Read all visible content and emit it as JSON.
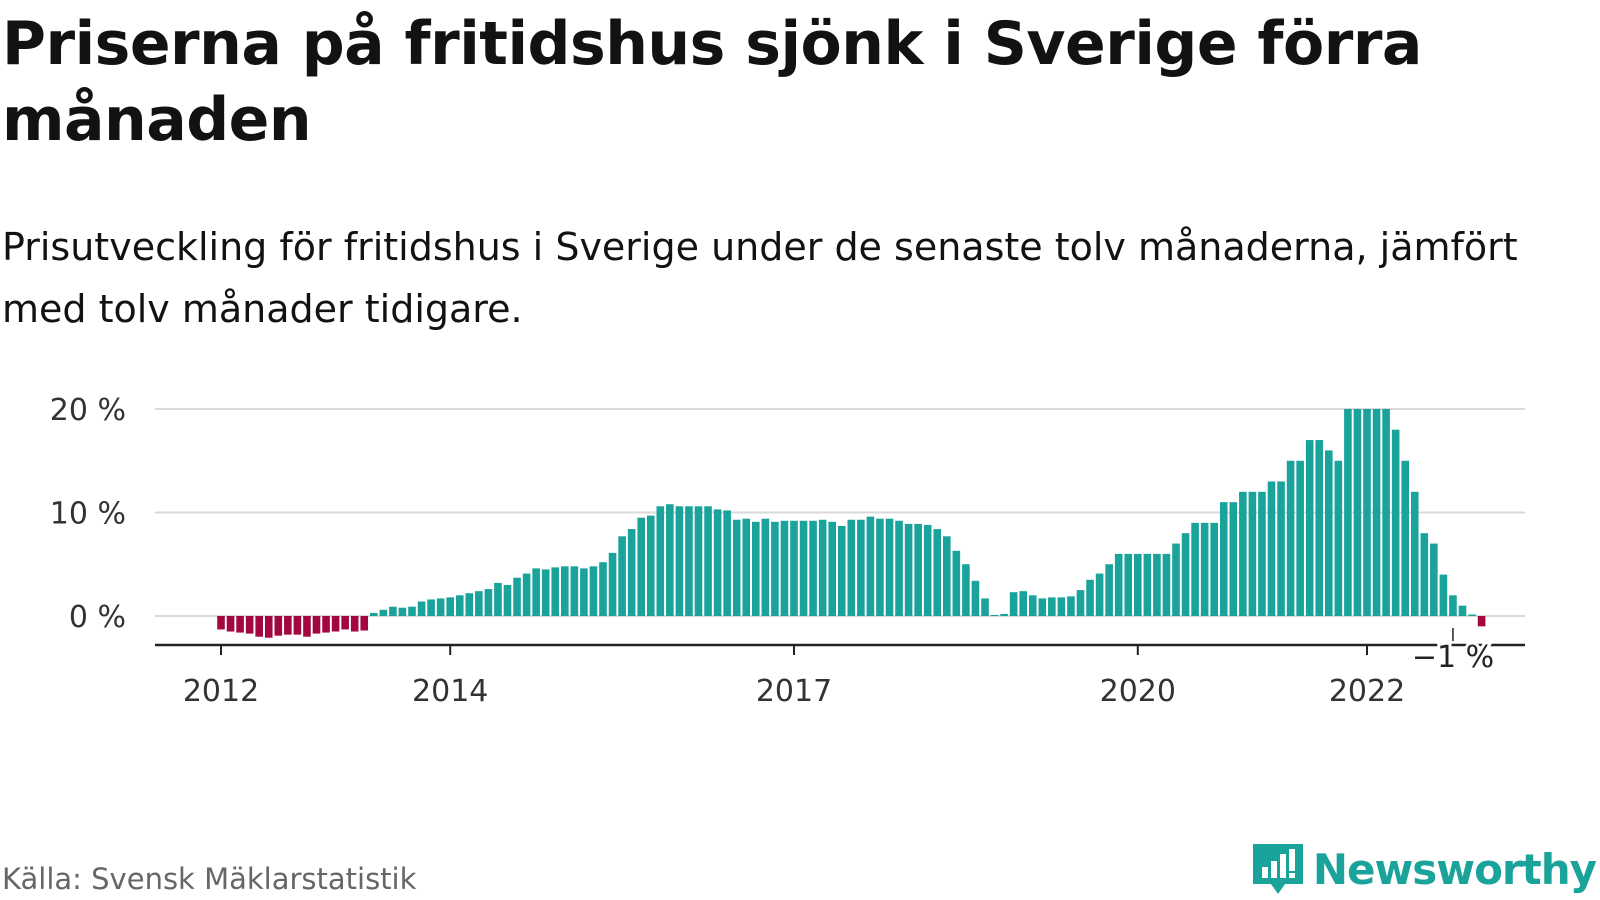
{
  "title": "Priserna på fritidshus sjönk i Sverige förra månaden",
  "subtitle": "Prisutveckling för fritidshus i Sverige under de senaste tolv månaderna, jämfört med tolv månader tidigare.",
  "source": "Källa: Svensk Mäklarstatistik",
  "brand": {
    "name": "Newsworthy",
    "icon": "newsworthy-logo-icon"
  },
  "colors": {
    "positive": "#1aa39a",
    "negative": "#a3073f",
    "grid": "#d9d9d9",
    "axis": "#222222",
    "text": "#333333"
  },
  "chart_data": {
    "type": "bar",
    "title": "",
    "xlabel": "",
    "ylabel": "",
    "ylim": [
      -3,
      20
    ],
    "grid": true,
    "yticks": [
      {
        "value": 0,
        "label": "0 %"
      },
      {
        "value": 10,
        "label": "10 %"
      },
      {
        "value": 20,
        "label": "20 %"
      }
    ],
    "xticks": [
      {
        "month": "2012-01",
        "label": "2012"
      },
      {
        "month": "2014-01",
        "label": "2014"
      },
      {
        "month": "2017-01",
        "label": "2017"
      },
      {
        "month": "2020-01",
        "label": "2020"
      },
      {
        "month": "2022-01",
        "label": "2022"
      }
    ],
    "start_month": "2012-01",
    "annotation": {
      "month": "2022-10",
      "label": "−1 %"
    },
    "values": [
      -1.3,
      -1.5,
      -1.6,
      -1.7,
      -2.0,
      -2.1,
      -1.9,
      -1.8,
      -1.8,
      -2.0,
      -1.7,
      -1.6,
      -1.5,
      -1.3,
      -1.5,
      -1.4,
      0.3,
      0.6,
      0.9,
      0.8,
      0.9,
      1.4,
      1.6,
      1.7,
      1.8,
      2.0,
      2.2,
      2.4,
      2.6,
      3.2,
      3.0,
      3.7,
      4.1,
      4.6,
      4.5,
      4.7,
      4.8,
      4.8,
      4.6,
      4.8,
      5.2,
      6.1,
      7.7,
      8.4,
      9.5,
      9.7,
      10.6,
      10.8,
      10.6,
      10.6,
      10.6,
      10.6,
      10.3,
      10.2,
      9.3,
      9.4,
      9.1,
      9.4,
      9.1,
      9.2,
      9.2,
      9.2,
      9.2,
      9.3,
      9.1,
      8.7,
      9.3,
      9.3,
      9.6,
      9.4,
      9.4,
      9.2,
      8.9,
      8.9,
      8.8,
      8.4,
      7.7,
      6.3,
      5.0,
      3.4,
      1.7,
      0.1,
      0.2,
      2.3,
      2.4,
      2.0,
      1.7,
      1.8,
      1.8,
      1.9,
      2.5,
      3.5,
      4.1,
      5.0,
      6.0,
      6.0,
      6.0,
      6.0,
      6.0,
      6.0,
      7.0,
      8.0,
      9.0,
      9.0,
      9.0,
      11.0,
      11.0,
      12.0,
      12.0,
      12.0,
      13.0,
      13.0,
      15.0,
      15.0,
      17.0,
      17.0,
      16.0,
      15.0,
      20.0,
      20.0,
      20.0,
      20.0,
      20.0,
      18.0,
      15.0,
      12.0,
      8.0,
      7.0,
      4.0,
      2.0,
      1.0,
      0.0,
      -1.0
    ]
  }
}
